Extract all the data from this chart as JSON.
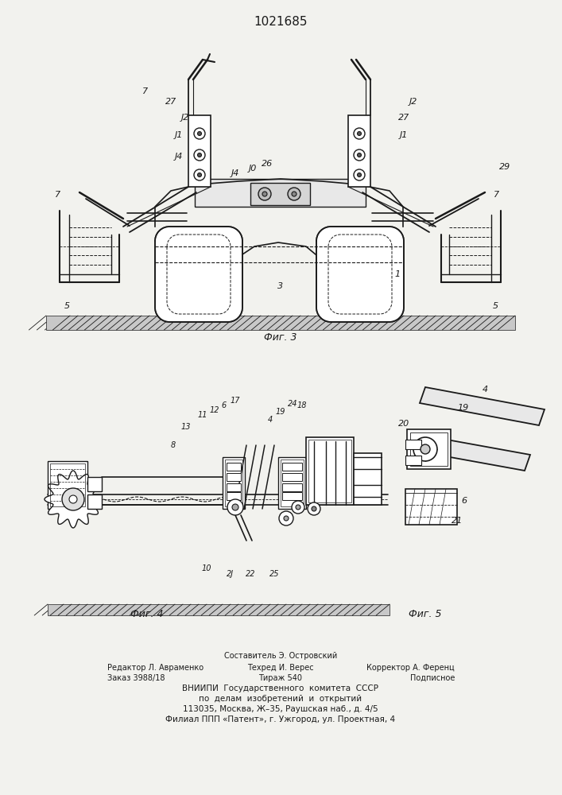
{
  "patent_number": "1021685",
  "fig3_label": "Фиг. 3",
  "fig4_label": "Фиг. 4",
  "fig5_label": "Фиг. 5",
  "bg_color": "#f2f2ee",
  "line_color": "#1a1a1a",
  "footer": [
    [
      "Составитель Э. Островский",
      353,
      825,
      7.0,
      "center"
    ],
    [
      "Редактор Л. Авраменко",
      135,
      840,
      7.0,
      "left"
    ],
    [
      "Техред И. Верес",
      353,
      840,
      7.0,
      "center"
    ],
    [
      "Корректор А. Ференц",
      572,
      840,
      7.0,
      "right"
    ],
    [
      "Заказ 3988/18",
      135,
      853,
      7.0,
      "left"
    ],
    [
      "Тираж 540",
      353,
      853,
      7.0,
      "center"
    ],
    [
      "Подписное",
      572,
      853,
      7.0,
      "right"
    ],
    [
      "ВНИИПИ  Государственного  комитета  СССР",
      353,
      866,
      7.5,
      "center"
    ],
    [
      "по  делам  изобретений  и  открытий",
      353,
      879,
      7.5,
      "center"
    ],
    [
      "113035, Москва, Ж–35, Раушская наб., д. 4/5",
      353,
      892,
      7.5,
      "center"
    ],
    [
      "Филиал ППП «Патент», г. Ужгород, ул. Проектная, 4",
      353,
      905,
      7.5,
      "center"
    ]
  ]
}
